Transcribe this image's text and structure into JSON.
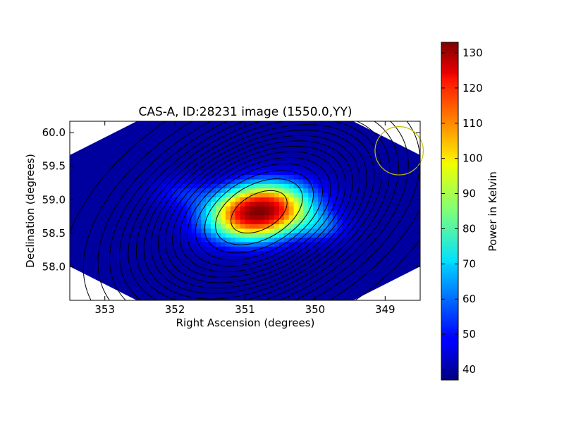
{
  "chart_data": {
    "type": "heatmap",
    "title": "CAS-A, ID:28231 image (1550.0,YY)",
    "xlabel": "Right Ascension (degrees)",
    "ylabel": "Declination (degrees)",
    "xlim": [
      353.5,
      348.5
    ],
    "ylim": [
      57.5,
      60.17
    ],
    "x_inverted": true,
    "xticks": [
      353,
      352,
      351,
      350,
      349
    ],
    "yticks": [
      58.0,
      58.5,
      59.0,
      59.5,
      60.0
    ],
    "xtick_labels": [
      "353",
      "352",
      "351",
      "350",
      "349"
    ],
    "ytick_labels": [
      "58.0",
      "58.5",
      "59.0",
      "59.5",
      "60.0"
    ],
    "colormap": "jet",
    "colorbar": {
      "label": "Power in Kelvin",
      "vmin": 37,
      "vmax": 133,
      "ticks": [
        40,
        50,
        60,
        70,
        80,
        90,
        100,
        110,
        120,
        130
      ],
      "tick_labels": [
        "40",
        "50",
        "60",
        "70",
        "80",
        "90",
        "100",
        "110",
        "120",
        "130"
      ]
    },
    "peak": {
      "ra": 350.8,
      "dec": 58.82,
      "value": 133
    },
    "baseline_value": 40,
    "contour_levels": [
      45,
      50,
      55,
      60,
      65,
      70,
      75,
      80,
      85,
      90,
      95,
      100,
      105,
      110,
      115,
      120,
      125,
      130
    ],
    "beam_marker": {
      "ra": 348.8,
      "dec": 59.73,
      "radius_deg": 0.36,
      "color": "#bfbf00"
    },
    "grid": false,
    "legend": "none"
  }
}
